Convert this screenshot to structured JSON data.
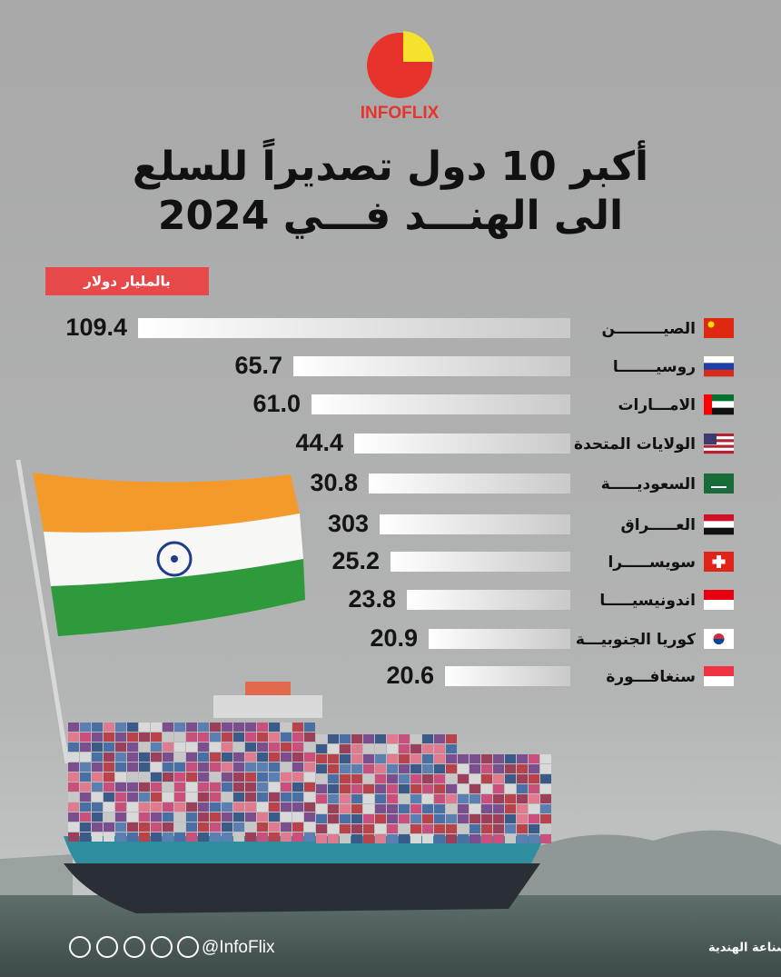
{
  "brand": "INFOFLIX",
  "title_lines": [
    "أكبر 10 دول تصديراً للسلع",
    "الى الهنـــد فـــي 2024"
  ],
  "unit": "بالمليار دولار",
  "rows": [
    {
      "country": "الصيـــــــــن",
      "value": "109.4"
    },
    {
      "country": "روسيـــــــا",
      "value": "65.7"
    },
    {
      "country": "الامـــارات",
      "value": "61.0"
    },
    {
      "country": "الولايات المتحدة",
      "value": "44.4"
    },
    {
      "country": "السعوديـــــة",
      "value": "30.8"
    },
    {
      "country": "العـــــراق",
      "value": "303"
    },
    {
      "country": "سويســـــرا",
      "value": "25.2"
    },
    {
      "country": "اندونيسيـــــا",
      "value": "23.8"
    },
    {
      "country": "كوريا الجنوبيـــة",
      "value": "20.9"
    },
    {
      "country": "سنغافـــورة",
      "value": "20.6"
    }
  ],
  "handle": "@InfoFlix",
  "source": "المصدر: وزارة التجارة والصناعة الهندية"
}
